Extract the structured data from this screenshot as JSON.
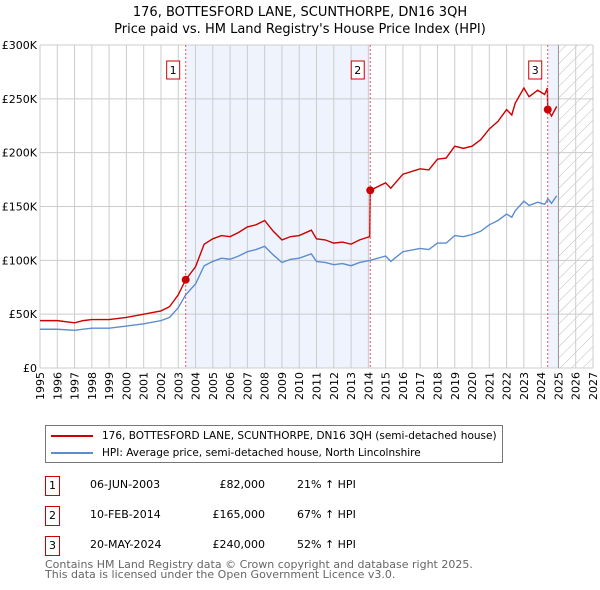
{
  "chart_data": {
    "type": "line",
    "title": "176, BOTTESFORD LANE, SCUNTHORPE, DN16 3QH",
    "subtitle": "Price paid vs. HM Land Registry's House Price Index (HPI)",
    "xlim": [
      1995,
      2027
    ],
    "ylim": [
      0,
      300000
    ],
    "x_ticks": [
      "1995",
      "1996",
      "1997",
      "1998",
      "1999",
      "2000",
      "2001",
      "2002",
      "2003",
      "2004",
      "2005",
      "2006",
      "2007",
      "2008",
      "2009",
      "2010",
      "2011",
      "2012",
      "2013",
      "2014",
      "2015",
      "2016",
      "2017",
      "2018",
      "2019",
      "2020",
      "2021",
      "2022",
      "2023",
      "2024",
      "2025",
      "2026",
      "2027"
    ],
    "y_ticks": [
      {
        "v": 0,
        "label": "£0"
      },
      {
        "v": 50000,
        "label": "£50K"
      },
      {
        "v": 100000,
        "label": "£100K"
      },
      {
        "v": 150000,
        "label": "£150K"
      },
      {
        "v": 200000,
        "label": "£200K"
      },
      {
        "v": 250000,
        "label": "£250K"
      },
      {
        "v": 300000,
        "label": "£300K"
      }
    ],
    "grid": true,
    "future_hatch_from": 2025,
    "series": [
      {
        "name": "176, BOTTESFORD LANE, SCUNTHORPE, DN16 3QH (semi-detached house)",
        "color": "#cc0000",
        "x": [
          1995,
          1996,
          1997,
          1997.5,
          1998,
          1999,
          2000,
          2001,
          2002,
          2002.5,
          2003,
          2003.43,
          2004,
          2004.5,
          2005,
          2005.5,
          2006,
          2006.5,
          2007,
          2007.5,
          2008,
          2008.5,
          2009,
          2009.5,
          2010,
          2010.7,
          2011,
          2011.5,
          2012,
          2012.5,
          2013,
          2013.5,
          2014.08,
          2014.11,
          2015,
          2015.3,
          2016,
          2017,
          2017.5,
          2018,
          2018.5,
          2019,
          2019.5,
          2020,
          2020.5,
          2021,
          2021.5,
          2022,
          2022.3,
          2022.5,
          2023,
          2023.3,
          2023.8,
          2024.2,
          2024.36,
          2024.38,
          2024.6,
          2024.9
        ],
        "y": [
          44,
          44,
          42,
          44,
          45,
          45,
          47,
          50,
          53,
          57,
          68,
          82,
          94,
          115,
          120,
          123,
          122,
          126,
          131,
          133,
          137,
          127,
          119,
          122,
          123,
          128,
          120,
          119,
          116,
          117,
          115,
          119,
          122,
          165,
          172,
          167,
          180,
          185,
          184,
          194,
          195,
          206,
          204,
          206,
          212,
          222,
          229,
          240,
          235,
          246,
          260,
          252,
          258,
          254,
          260,
          240,
          234,
          243
        ]
      },
      {
        "name": "HPI: Average price, semi-detached house, North Lincolnshire",
        "color": "#5b8dd0",
        "x": [
          1995,
          1996,
          1997,
          1997.5,
          1998,
          1999,
          2000,
          2001,
          2002,
          2002.5,
          2003,
          2003.43,
          2004,
          2004.5,
          2005,
          2005.5,
          2006,
          2006.5,
          2007,
          2007.5,
          2008,
          2008.5,
          2009,
          2009.5,
          2010,
          2010.7,
          2011,
          2011.5,
          2012,
          2012.5,
          2013,
          2013.5,
          2014.11,
          2015,
          2015.3,
          2016,
          2017,
          2017.5,
          2018,
          2018.5,
          2019,
          2019.5,
          2020,
          2020.5,
          2021,
          2021.5,
          2022,
          2022.3,
          2022.5,
          2023,
          2023.3,
          2023.8,
          2024.2,
          2024.4,
          2024.6,
          2024.9
        ],
        "y": [
          36,
          36,
          35,
          36,
          37,
          37,
          39,
          41,
          44,
          47,
          56,
          68,
          78,
          95,
          99,
          102,
          101,
          104,
          108,
          110,
          113,
          105,
          98,
          101,
          102,
          106,
          99,
          98,
          96,
          97,
          95,
          98,
          100,
          104,
          99,
          108,
          111,
          110,
          116,
          116,
          123,
          122,
          124,
          127,
          133,
          137,
          143,
          140,
          146,
          155,
          151,
          154,
          152,
          157,
          153,
          160
        ],
        "y_unit": "thousand GBP"
      }
    ],
    "sales": [
      {
        "n": "1",
        "x": 2003.43,
        "price": 82000,
        "date": "06-JUN-2003",
        "price_label": "£82,000",
        "hpi": "21% ↑ HPI"
      },
      {
        "n": "2",
        "x": 2014.11,
        "price": 165000,
        "date": "10-FEB-2014",
        "price_label": "£165,000",
        "hpi": "67% ↑ HPI"
      },
      {
        "n": "3",
        "x": 2024.38,
        "price": 240000,
        "date": "20-MAY-2024",
        "price_label": "£240,000",
        "hpi": "52% ↑ HPI"
      }
    ]
  },
  "footer": {
    "line1": "Contains HM Land Registry data © Crown copyright and database right 2025.",
    "line2": "This data is licensed under the Open Government Licence v3.0."
  }
}
